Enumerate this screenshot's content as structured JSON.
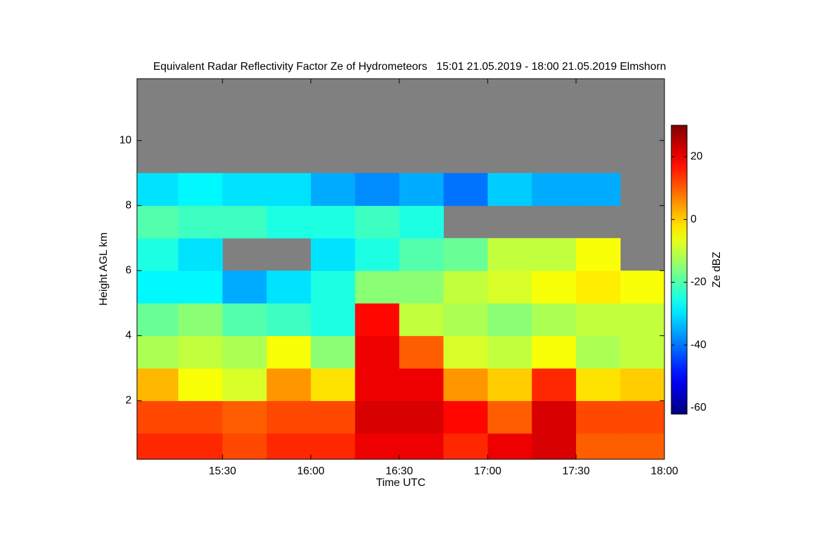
{
  "chart_data": {
    "type": "heatmap",
    "title": "Equivalent Radar Reflectivity Factor Ze of Hydrometeors   15:01 21.05.2019 - 18:00 21.05.2019 Elmshorn",
    "xlabel": "Time UTC",
    "ylabel": "Height AGL km",
    "colorbar_label": "Ze dBZ",
    "x_edges": [
      901,
      915,
      930,
      945,
      960,
      975,
      990,
      1005,
      1020,
      1035,
      1050,
      1065,
      1080
    ],
    "y_edges": [
      0.2,
      1,
      2,
      3,
      4,
      5,
      6,
      7,
      8,
      9,
      10,
      11,
      11.9
    ],
    "z": [
      [
        15,
        15,
        12,
        15,
        15,
        20,
        20,
        15,
        20,
        22,
        10,
        10
      ],
      [
        12,
        12,
        10,
        12,
        12,
        22,
        22,
        18,
        10,
        22,
        12,
        12
      ],
      [
        2,
        -5,
        -8,
        5,
        -2,
        20,
        20,
        5,
        0,
        15,
        -2,
        0
      ],
      [
        -12,
        -10,
        -12,
        -5,
        -15,
        20,
        10,
        -8,
        -10,
        -5,
        -12,
        -10
      ],
      [
        -18,
        -15,
        -20,
        -22,
        -25,
        18,
        -10,
        -12,
        -15,
        -12,
        -10,
        -10
      ],
      [
        -28,
        -28,
        -35,
        -30,
        -25,
        -15,
        -15,
        -10,
        -8,
        -5,
        -3,
        -5
      ],
      [
        -25,
        -30,
        null,
        null,
        -30,
        -25,
        -20,
        -18,
        -10,
        -10,
        -5,
        null
      ],
      [
        -20,
        -22,
        -22,
        -25,
        -25,
        -22,
        -25,
        null,
        null,
        null,
        null,
        null
      ],
      [
        -30,
        -28,
        -30,
        -30,
        -35,
        -38,
        -35,
        -40,
        -32,
        -35,
        -35,
        null
      ],
      [
        null,
        null,
        null,
        null,
        null,
        null,
        null,
        null,
        null,
        null,
        null,
        null
      ],
      [
        null,
        null,
        null,
        null,
        null,
        null,
        null,
        null,
        null,
        null,
        null,
        null
      ],
      [
        null,
        null,
        null,
        null,
        null,
        null,
        null,
        null,
        null,
        null,
        null,
        null
      ]
    ],
    "xlim": [
      901,
      1080
    ],
    "ylim": [
      0.2,
      11.9
    ],
    "xticks": [
      {
        "value": 930,
        "label": "15:30"
      },
      {
        "value": 960,
        "label": "16:00"
      },
      {
        "value": 990,
        "label": "16:30"
      },
      {
        "value": 1020,
        "label": "17:00"
      },
      {
        "value": 1050,
        "label": "17:30"
      },
      {
        "value": 1080,
        "label": "18:00"
      }
    ],
    "yticks": [
      2,
      4,
      6,
      8,
      10
    ],
    "clim": [
      -62,
      30
    ],
    "cticks": [
      -60,
      -40,
      -20,
      0,
      20
    ],
    "colormap": "jet",
    "background": "#808080"
  }
}
